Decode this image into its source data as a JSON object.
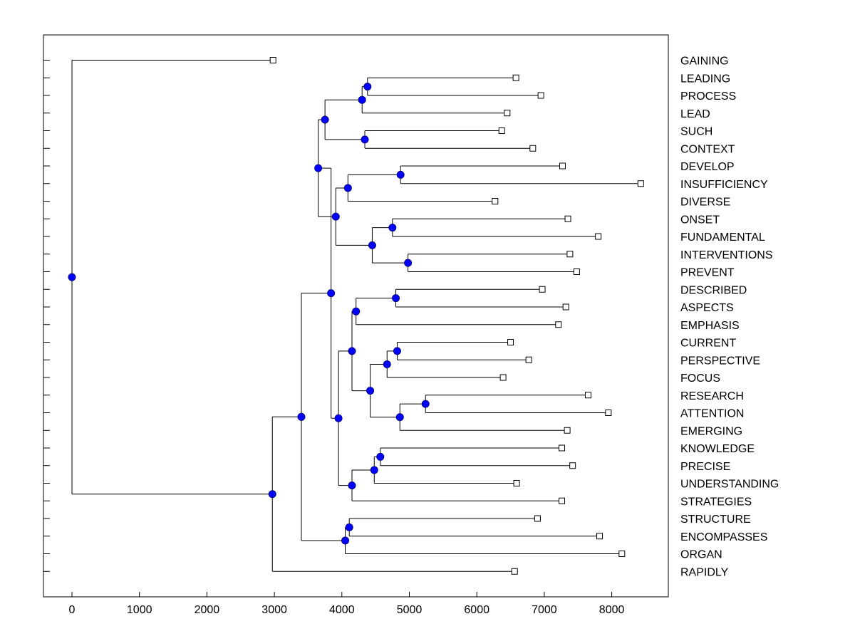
{
  "chart_data": {
    "type": "dendrogram",
    "orientation": "horizontal",
    "title": "",
    "xlabel": "",
    "ylabel": "",
    "xlim": [
      -420,
      8880
    ],
    "xticks": [
      0,
      1000,
      2000,
      3000,
      4000,
      5000,
      6000,
      7000,
      8000
    ],
    "grid": false,
    "colors": {
      "node": "#0000ff",
      "node_edge": "#000080",
      "line": "#000000",
      "leaf_marker": "#ffffff"
    },
    "leaves": [
      {
        "label": "GAINING",
        "value": 2980
      },
      {
        "label": "LEADING",
        "value": 6580
      },
      {
        "label": "PROCESS",
        "value": 6950
      },
      {
        "label": "LEAD",
        "value": 6450
      },
      {
        "label": "SUCH",
        "value": 6370
      },
      {
        "label": "CONTEXT",
        "value": 6830
      },
      {
        "label": "DEVELOP",
        "value": 7270
      },
      {
        "label": "INSUFFICIENCY",
        "value": 8430
      },
      {
        "label": "DIVERSE",
        "value": 6270
      },
      {
        "label": "ONSET",
        "value": 7350
      },
      {
        "label": "FUNDAMENTAL",
        "value": 7800
      },
      {
        "label": "INTERVENTIONS",
        "value": 7380
      },
      {
        "label": "PREVENT",
        "value": 7480
      },
      {
        "label": "DESCRIBED",
        "value": 6970
      },
      {
        "label": "ASPECTS",
        "value": 7320
      },
      {
        "label": "EMPHASIS",
        "value": 7210
      },
      {
        "label": "CURRENT",
        "value": 6500
      },
      {
        "label": "PERSPECTIVE",
        "value": 6770
      },
      {
        "label": "FOCUS",
        "value": 6390
      },
      {
        "label": "RESEARCH",
        "value": 7650
      },
      {
        "label": "ATTENTION",
        "value": 7950
      },
      {
        "label": "EMERGING",
        "value": 7340
      },
      {
        "label": "KNOWLEDGE",
        "value": 7260
      },
      {
        "label": "PRECISE",
        "value": 7420
      },
      {
        "label": "UNDERSTANDING",
        "value": 6590
      },
      {
        "label": "STRATEGIES",
        "value": 7260
      },
      {
        "label": "STRUCTURE",
        "value": 6900
      },
      {
        "label": "ENCOMPASSES",
        "value": 7820
      },
      {
        "label": "ORGAN",
        "value": 8150
      },
      {
        "label": "RAPIDLY",
        "value": 6560
      }
    ],
    "nodes": [
      {
        "id": "n1",
        "value": 4380,
        "children": [
          "L1",
          "L2"
        ]
      },
      {
        "id": "n2",
        "value": 4300,
        "children": [
          "n1",
          "L3"
        ]
      },
      {
        "id": "n3",
        "value": 4340,
        "children": [
          "L4",
          "L5"
        ]
      },
      {
        "id": "n4",
        "value": 3750,
        "children": [
          "n2",
          "n3"
        ]
      },
      {
        "id": "n5",
        "value": 4870,
        "children": [
          "L6",
          "L7"
        ]
      },
      {
        "id": "n6",
        "value": 4090,
        "children": [
          "n5",
          "L8"
        ]
      },
      {
        "id": "n7",
        "value": 4750,
        "children": [
          "L9",
          "L10"
        ]
      },
      {
        "id": "n8",
        "value": 4980,
        "children": [
          "L11",
          "L12"
        ]
      },
      {
        "id": "n9",
        "value": 4450,
        "children": [
          "n7",
          "n8"
        ]
      },
      {
        "id": "n10",
        "value": 3910,
        "children": [
          "n6",
          "n9"
        ]
      },
      {
        "id": "n11",
        "value": 3650,
        "children": [
          "n4",
          "n10"
        ]
      },
      {
        "id": "n12",
        "value": 4800,
        "children": [
          "L13",
          "L14"
        ]
      },
      {
        "id": "n13",
        "value": 4210,
        "children": [
          "n12",
          "L15"
        ]
      },
      {
        "id": "n14",
        "value": 4820,
        "children": [
          "L16",
          "L17"
        ]
      },
      {
        "id": "n15",
        "value": 4670,
        "children": [
          "n14",
          "L18"
        ]
      },
      {
        "id": "n16",
        "value": 5240,
        "children": [
          "L19",
          "L20"
        ]
      },
      {
        "id": "n17",
        "value": 4860,
        "children": [
          "n16",
          "L21"
        ]
      },
      {
        "id": "n18",
        "value": 4420,
        "children": [
          "n15",
          "n17"
        ]
      },
      {
        "id": "n19",
        "value": 4150,
        "children": [
          "n13",
          "n18"
        ]
      },
      {
        "id": "n20",
        "value": 4570,
        "children": [
          "L22",
          "L23"
        ]
      },
      {
        "id": "n21",
        "value": 4480,
        "children": [
          "n20",
          "L24"
        ]
      },
      {
        "id": "n22",
        "value": 4150,
        "children": [
          "n21",
          "L25"
        ]
      },
      {
        "id": "n23",
        "value": 3950,
        "children": [
          "n19",
          "n22"
        ]
      },
      {
        "id": "n24",
        "value": 3840,
        "children": [
          "n23",
          "n11"
        ],
        "order": "n11-first"
      },
      {
        "id": "n25",
        "value": 4110,
        "children": [
          "L26",
          "L27"
        ]
      },
      {
        "id": "n26",
        "value": 4050,
        "children": [
          "n25",
          "L28"
        ]
      },
      {
        "id": "n27",
        "value": 3400,
        "children": [
          "n24",
          "n26"
        ]
      },
      {
        "id": "n28",
        "value": 2970,
        "children": [
          "n27",
          "L29"
        ]
      },
      {
        "id": "n29",
        "value": 0,
        "children": [
          "L0",
          "n28"
        ]
      }
    ]
  }
}
